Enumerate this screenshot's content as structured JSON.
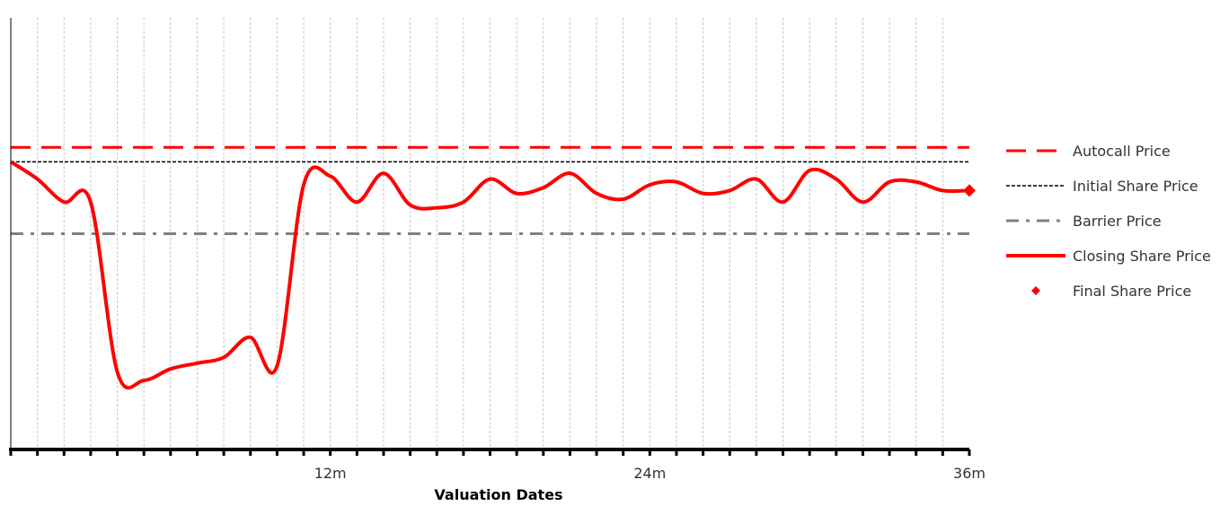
{
  "chart_data": {
    "type": "line",
    "title": "",
    "xlabel": "Valuation Dates",
    "ylabel": "",
    "xlim": [
      0,
      36
    ],
    "ylim": [
      0,
      150
    ],
    "x_ticks": [
      {
        "value": 12,
        "label": "12m"
      },
      {
        "value": 24,
        "label": "24m"
      },
      {
        "value": 36,
        "label": "36m"
      }
    ],
    "grid": "vertical dashed, monthly",
    "legend_position": "right",
    "colors": {
      "autocall": "#ff0000",
      "initial": "#000000",
      "barrier": "#808080",
      "closing": "#ff0000",
      "final": "#ff0000"
    },
    "series": [
      {
        "name": "Autocall Price",
        "style": "long-dash",
        "x": [
          0,
          36
        ],
        "values": [
          105,
          105
        ]
      },
      {
        "name": "Initial Share Price",
        "style": "dotted",
        "x": [
          0,
          36
        ],
        "values": [
          100,
          100
        ]
      },
      {
        "name": "Barrier Price",
        "style": "dash-dot",
        "x": [
          0,
          36
        ],
        "values": [
          75,
          75
        ]
      },
      {
        "name": "Closing Share Price",
        "style": "solid",
        "x": [
          0,
          1,
          2,
          3,
          4,
          5,
          6,
          7,
          8,
          9,
          10,
          11,
          12,
          13,
          14,
          15,
          16,
          17,
          18,
          19,
          20,
          21,
          22,
          23,
          24,
          25,
          26,
          27,
          28,
          29,
          30,
          31,
          32,
          33,
          34,
          35,
          36
        ],
        "values": [
          100,
          94,
          86,
          86,
          27,
          24,
          28,
          30,
          32,
          39,
          29,
          92,
          95,
          86,
          96,
          85,
          84,
          86,
          94,
          89,
          91,
          96,
          89,
          87,
          92,
          93,
          89,
          90,
          94,
          86,
          97,
          94,
          86,
          93,
          93,
          90,
          90
        ]
      },
      {
        "name": "Final Share Price",
        "style": "diamond-marker",
        "x": [
          36
        ],
        "values": [
          90
        ]
      }
    ]
  }
}
